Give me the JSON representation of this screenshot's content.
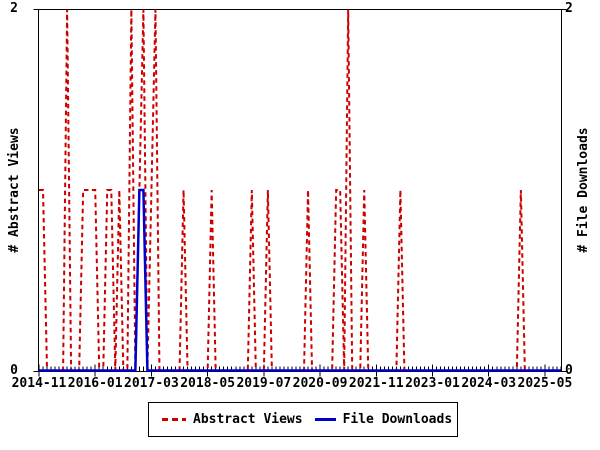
{
  "chart_data": {
    "type": "line",
    "title": "",
    "x_start": "2014-11",
    "x_end": "2025-09",
    "n_points": 131,
    "x_tick_labels": [
      "2014-11",
      "2016-01",
      "2017-03",
      "2018-05",
      "2019-07",
      "2020-09",
      "2021-11",
      "2023-01",
      "2024-03",
      "2025-05"
    ],
    "x_tick_indices": [
      0,
      14,
      28,
      42,
      56,
      70,
      84,
      98,
      112,
      126
    ],
    "ylim": [
      0,
      2
    ],
    "y_tick_labels": [
      "0",
      "2"
    ],
    "y_axis_left_title": "# Abstract Views",
    "y_axis_right_title": "# File Downloads",
    "grid": false,
    "legend_position": "bottom-center",
    "axis_color": "#000000",
    "series": [
      {
        "name": "Abstract Views",
        "color": "#cc0000",
        "line_style": "dashed",
        "values": [
          1,
          1,
          0,
          0,
          0,
          0,
          0,
          2,
          0,
          0,
          0,
          1,
          1,
          1,
          1,
          0,
          0,
          1,
          1,
          0,
          1,
          0,
          0,
          2,
          0,
          1,
          2,
          0,
          1,
          2,
          0,
          0,
          0,
          0,
          0,
          0,
          1,
          0,
          0,
          0,
          0,
          0,
          0,
          1,
          0,
          0,
          0,
          0,
          0,
          0,
          0,
          0,
          0,
          1,
          0,
          0,
          0,
          1,
          0,
          0,
          0,
          0,
          0,
          0,
          0,
          0,
          0,
          1,
          0,
          0,
          0,
          0,
          0,
          0,
          1,
          1,
          0,
          2,
          0,
          0,
          0,
          1,
          0,
          0,
          0,
          0,
          0,
          0,
          0,
          0,
          1,
          0,
          0,
          0,
          0,
          0,
          0,
          0,
          0,
          0,
          0,
          0,
          0,
          0,
          0,
          0,
          0,
          0,
          0,
          0,
          0,
          0,
          0,
          0,
          0,
          0,
          0,
          0,
          0,
          0,
          1,
          0,
          0,
          0,
          0,
          0,
          0,
          0,
          0,
          0,
          0
        ]
      },
      {
        "name": "File Downloads",
        "color": "#0000cc",
        "line_style": "solid",
        "values": [
          0,
          0,
          0,
          0,
          0,
          0,
          0,
          0,
          0,
          0,
          0,
          0,
          0,
          0,
          0,
          0,
          0,
          0,
          0,
          0,
          0,
          0,
          0,
          0,
          0,
          1,
          1,
          0,
          0,
          0,
          0,
          0,
          0,
          0,
          0,
          0,
          0,
          0,
          0,
          0,
          0,
          0,
          0,
          0,
          0,
          0,
          0,
          0,
          0,
          0,
          0,
          0,
          0,
          0,
          0,
          0,
          0,
          0,
          0,
          0,
          0,
          0,
          0,
          0,
          0,
          0,
          0,
          0,
          0,
          0,
          0,
          0,
          0,
          0,
          0,
          0,
          0,
          0,
          0,
          0,
          0,
          0,
          0,
          0,
          0,
          0,
          0,
          0,
          0,
          0,
          0,
          0,
          0,
          0,
          0,
          0,
          0,
          0,
          0,
          0,
          0,
          0,
          0,
          0,
          0,
          0,
          0,
          0,
          0,
          0,
          0,
          0,
          0,
          0,
          0,
          0,
          0,
          0,
          0,
          0,
          0,
          0,
          0,
          0,
          0,
          0,
          0,
          0,
          0,
          0,
          0
        ]
      }
    ]
  }
}
